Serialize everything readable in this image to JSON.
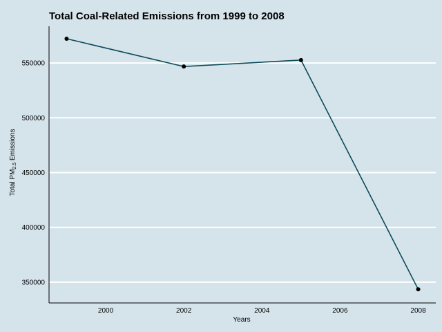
{
  "chart_data": {
    "type": "line",
    "title": "Total Coal-Related Emissions from 1999 to 2008",
    "xlabel": "Years",
    "ylabel_main": "Total PM",
    "ylabel_sub": "2.5",
    "ylabel_rest": " Emissions",
    "x": [
      1999,
      2002,
      2005,
      2008
    ],
    "series": [
      {
        "values": [
          572126,
          546789,
          552675,
          343432
        ]
      }
    ],
    "xticks": [
      2000,
      2002,
      2004,
      2006,
      2008
    ],
    "yticks": [
      350000,
      400000,
      450000,
      500000,
      550000
    ],
    "xlim": [
      1998.55,
      2008.45
    ],
    "ylim": [
      331000,
      583500
    ],
    "grid": "horizontal",
    "line_color": "#0d4a5a",
    "point_color": "#000000",
    "background_color": "#d5e4eb",
    "grid_color": "#ffffff"
  }
}
